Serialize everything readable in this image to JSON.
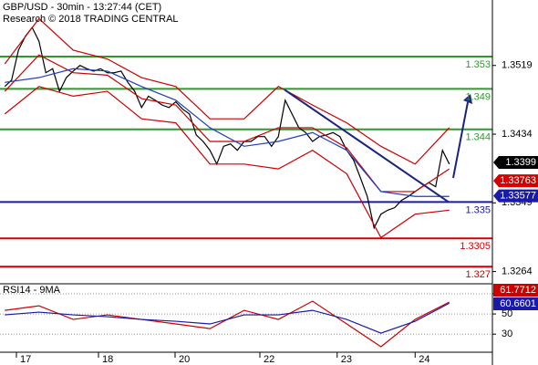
{
  "chart_data": [
    {
      "type": "line",
      "title": "GBP/USD - 30min - 13:27:44 (CET)",
      "subtitle": "Research © 2018 TRADING CENTRAL",
      "xlim": [
        -0.7,
        71.3
      ],
      "ylim": [
        1.325,
        1.36
      ],
      "yticks": [
        1.3519,
        1.3434,
        1.3349,
        1.3264
      ],
      "xticks": [
        {
          "value": 1.7,
          "label": "17"
        },
        {
          "value": 13.7,
          "label": "18"
        },
        {
          "value": 24.9,
          "label": "20"
        },
        {
          "value": 37.3,
          "label": "22"
        },
        {
          "value": 48.6,
          "label": "23"
        },
        {
          "value": 60,
          "label": "24"
        }
      ],
      "series": [
        {
          "name": "GBP/USD",
          "color": "#000000",
          "x": [
            0,
            1,
            2,
            3,
            4,
            5,
            6,
            7,
            8,
            9,
            10,
            11,
            12,
            13,
            14,
            15,
            16,
            17,
            18,
            19,
            20,
            21,
            22,
            23,
            24,
            25,
            26,
            27,
            28,
            29,
            30,
            31,
            32,
            33,
            34,
            35,
            36,
            37,
            38,
            39,
            40,
            41,
            42,
            43,
            44,
            45,
            46,
            47,
            48,
            49,
            50,
            51,
            52,
            53,
            54,
            55,
            56,
            57,
            58,
            59,
            60,
            61,
            62,
            63,
            64,
            65
          ],
          "values": [
            1.3493,
            1.3501,
            1.3538,
            1.3555,
            1.3566,
            1.3549,
            1.351,
            1.3515,
            1.3487,
            1.3504,
            1.3512,
            1.3519,
            1.3515,
            1.3512,
            1.3515,
            1.351,
            1.351,
            1.3512,
            1.3498,
            1.3487,
            1.3467,
            1.3481,
            1.3476,
            1.347,
            1.3467,
            1.3474,
            1.3465,
            1.3459,
            1.3433,
            1.3425,
            1.3414,
            1.3397,
            1.3419,
            1.3422,
            1.3414,
            1.3425,
            1.3425,
            1.3431,
            1.3431,
            1.3419,
            1.3431,
            1.3476,
            1.3459,
            1.3442,
            1.3436,
            1.3425,
            1.3431,
            1.3433,
            1.3436,
            1.3431,
            1.3414,
            1.3402,
            1.338,
            1.3357,
            1.3318,
            1.3335,
            1.334,
            1.3343,
            1.3352,
            1.3357,
            1.3363,
            1.3369,
            1.3374,
            1.3369,
            1.3414,
            1.3397
          ]
        },
        {
          "color": "#cc0000",
          "x": [
            0,
            5,
            10,
            15,
            20,
            25,
            30,
            35,
            40,
            45,
            50,
            55,
            60,
            65
          ],
          "values": [
            1.3521,
            1.3577,
            1.3538,
            1.3527,
            1.3504,
            1.3493,
            1.3453,
            1.3453,
            1.3493,
            1.347,
            1.3448,
            1.3419,
            1.3397,
            1.3442
          ]
        },
        {
          "color": "#cc0000",
          "x": [
            0,
            5,
            10,
            15,
            20,
            25,
            30,
            35,
            40,
            45,
            50,
            55,
            60,
            65
          ],
          "values": [
            1.3487,
            1.3532,
            1.351,
            1.3507,
            1.3478,
            1.347,
            1.3425,
            1.3425,
            1.3442,
            1.3442,
            1.3417,
            1.3363,
            1.3363,
            1.3391
          ]
        },
        {
          "color": "#cc0000",
          "x": [
            0,
            5,
            10,
            15,
            20,
            25,
            30,
            35,
            40,
            45,
            50,
            55,
            60,
            65
          ],
          "values": [
            1.3459,
            1.3493,
            1.3481,
            1.3487,
            1.3453,
            1.3448,
            1.3397,
            1.3397,
            1.3391,
            1.3414,
            1.3385,
            1.3306,
            1.3335,
            1.334
          ]
        },
        {
          "color": "#1f3fbf",
          "x": [
            0,
            5,
            10,
            15,
            20,
            25,
            30,
            35,
            40,
            45,
            50,
            55,
            60,
            65
          ],
          "values": [
            1.3498,
            1.3504,
            1.3515,
            1.3512,
            1.3493,
            1.3476,
            1.3442,
            1.3419,
            1.3425,
            1.3436,
            1.3414,
            1.3363,
            1.3357,
            1.3357
          ]
        },
        {
          "color": "#1a237e",
          "x": [
            40.9,
            64.9
          ],
          "values": [
            1.3489,
            1.335
          ]
        }
      ],
      "levels": [
        {
          "value": 1.353,
          "color": "#2e9a2e"
        },
        {
          "value": 1.349,
          "color": "#2e9a2e"
        },
        {
          "value": 1.344,
          "color": "#2e9a2e"
        },
        {
          "value": 1.335,
          "color": "#1a1aa8"
        },
        {
          "value": 1.3305,
          "color": "#d40000"
        },
        {
          "value": 1.327,
          "color": "#d40000"
        }
      ],
      "price_tags": [
        {
          "value": 1.3399,
          "color": "#000000"
        },
        {
          "value": 1.33763,
          "color": "#d40000"
        },
        {
          "value": 1.33577,
          "color": "#1a1aa8"
        }
      ]
    },
    {
      "type": "line",
      "title": "RSI14 - 9MA",
      "xlim": [
        -0.7,
        71.3
      ],
      "ylim": [
        13,
        79
      ],
      "yticks": [
        70,
        50,
        30
      ],
      "series": [
        {
          "color": "#cc0000",
          "tag": 61.7712,
          "x": [
            0,
            5,
            10,
            15,
            20,
            25,
            30,
            35,
            40,
            45,
            50,
            55,
            60,
            65
          ],
          "values": [
            53.6,
            58.1,
            44.6,
            49.1,
            44.6,
            40.1,
            35.5,
            53.6,
            44.6,
            62.7,
            40.1,
            17.5,
            44.6,
            61.8
          ]
        },
        {
          "color": "#1a1aa8",
          "tag": 60.6601,
          "x": [
            0,
            5,
            10,
            15,
            20,
            25,
            30,
            35,
            40,
            45,
            50,
            55,
            60,
            65
          ],
          "values": [
            49.1,
            51.8,
            49.1,
            47.3,
            44.6,
            42.8,
            40.1,
            49.1,
            49.1,
            53.6,
            44.6,
            31,
            42.8,
            60.7
          ]
        }
      ]
    }
  ]
}
